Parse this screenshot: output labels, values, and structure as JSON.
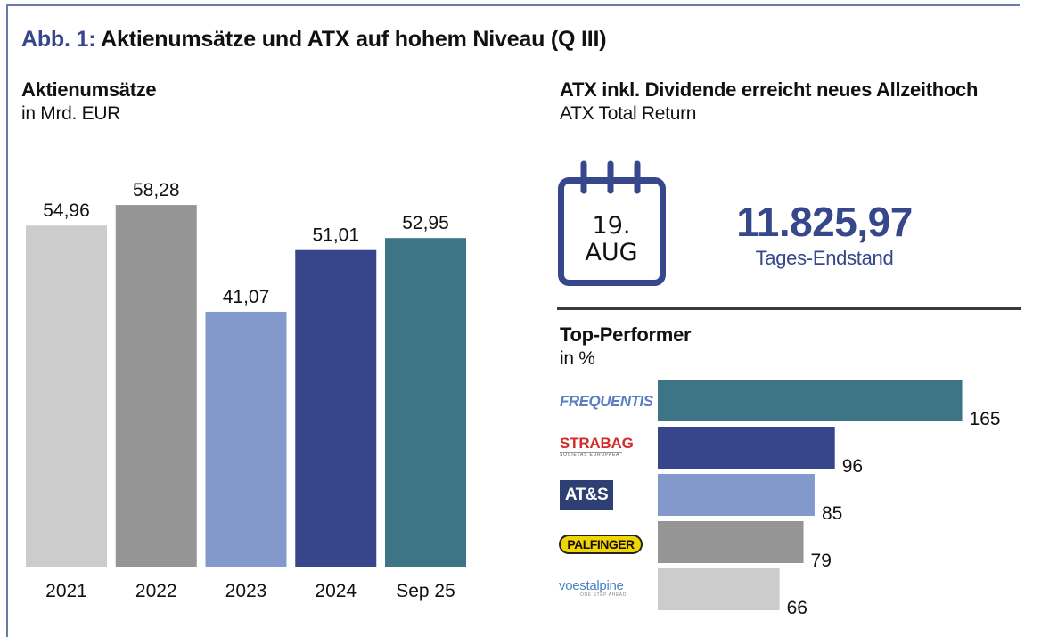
{
  "figure": {
    "title_prefix": "Abb. 1:",
    "title": "Aktienumsätze und ATX auf hohem Niveau (Q III)"
  },
  "left_panel": {
    "heading": "Aktienumsätze",
    "unit": "in Mrd. EUR"
  },
  "right_panel": {
    "heading": "ATX inkl. Dividende erreicht neues Allzeithoch",
    "subheading": "ATX Total Return",
    "calendar": {
      "day": "19.",
      "month": "AUG",
      "icon": "calendar-icon"
    },
    "index_value": "11.825,97",
    "index_caption": "Tages-Endstand",
    "top_performer": {
      "heading": "Top-Performer",
      "unit": "in %",
      "logos": [
        {
          "name": "FREQUENTIS",
          "tag": ""
        },
        {
          "name": "STRABAG",
          "tag": "SOCIETAS EUROPAEA"
        },
        {
          "name": "AT&S",
          "tag": ""
        },
        {
          "name": "PALFINGER",
          "tag": ""
        },
        {
          "name": "voestalpine",
          "tag": "ONE STEP AHEAD."
        }
      ]
    }
  },
  "colors": {
    "accent": "#36478b",
    "light_grey": "#cccccc",
    "mid_grey": "#959595",
    "light_blue": "#8399cb",
    "dark_blue": "#37468a",
    "teal": "#3d7587"
  },
  "chart_data": [
    {
      "type": "bar",
      "title": "Aktienumsätze",
      "ylabel": "in Mrd. EUR",
      "xlabel": "",
      "categories": [
        "2021",
        "2022",
        "2023",
        "2024",
        "Sep 25"
      ],
      "values": [
        54.96,
        58.28,
        41.07,
        51.01,
        52.95
      ],
      "value_labels": [
        "54,96",
        "58,28",
        "41,07",
        "51,01",
        "52,95"
      ],
      "bar_colors": [
        "#cccccc",
        "#959595",
        "#8399cb",
        "#37468a",
        "#3d7587"
      ],
      "ylim": [
        0,
        60
      ],
      "grid": false,
      "legend": "none"
    },
    {
      "type": "bar",
      "orientation": "horizontal",
      "title": "Top-Performer",
      "xlabel": "in %",
      "categories": [
        "FREQUENTIS",
        "STRABAG",
        "AT&S",
        "PALFINGER",
        "voestalpine"
      ],
      "values": [
        165,
        96,
        85,
        79,
        66
      ],
      "value_labels": [
        "165",
        "96",
        "85",
        "79",
        "66"
      ],
      "bar_colors": [
        "#3d7587",
        "#37468a",
        "#8399cb",
        "#959595",
        "#cccccc"
      ],
      "xlim": [
        0,
        165
      ],
      "grid": false,
      "legend": "none"
    }
  ]
}
